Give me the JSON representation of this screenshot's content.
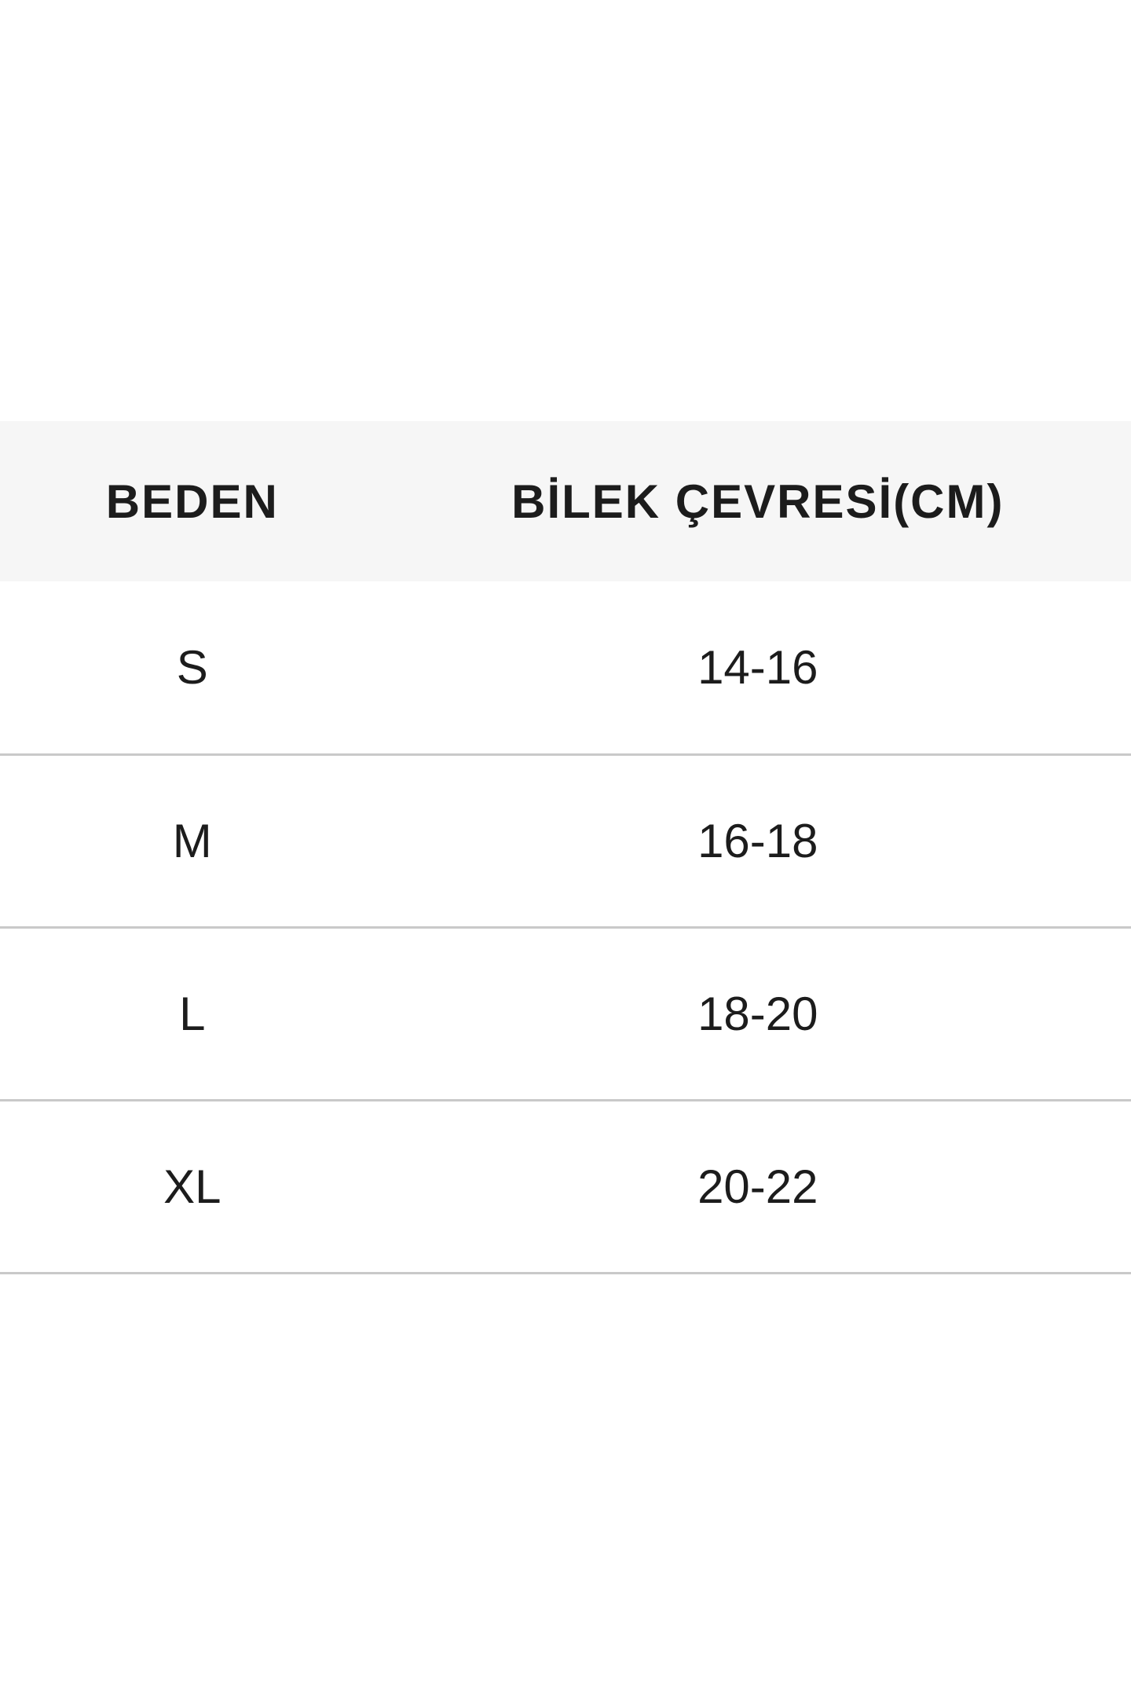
{
  "page": {
    "background": "#ffffff",
    "text_color": "#1c1c1c"
  },
  "table": {
    "header": {
      "background": "#f6f6f6",
      "columns": [
        "BEDEN",
        "BİLEK ÇEVRESİ(CM)"
      ]
    },
    "divider_color": "#c9c9c9",
    "rows": [
      {
        "size": "S",
        "wrist": "14-16"
      },
      {
        "size": "M",
        "wrist": "16-18"
      },
      {
        "size": "L",
        "wrist": "18-20"
      },
      {
        "size": "XL",
        "wrist": "20-22"
      }
    ]
  },
  "chart_data": {
    "type": "table",
    "title": "",
    "columns": [
      "BEDEN",
      "BİLEK ÇEVRESİ(CM)"
    ],
    "categories": [
      "S",
      "M",
      "L",
      "XL"
    ],
    "values": [
      "14-16",
      "16-18",
      "18-20",
      "20-22"
    ],
    "rows": [
      [
        "S",
        "14-16"
      ],
      [
        "M",
        "16-18"
      ],
      [
        "L",
        "18-20"
      ],
      [
        "XL",
        "20-22"
      ]
    ],
    "layout_hints": {
      "header_background": "#f6f6f6",
      "row_divider_color": "#c9c9c9",
      "grid": "horizontal-dividers-only"
    }
  }
}
